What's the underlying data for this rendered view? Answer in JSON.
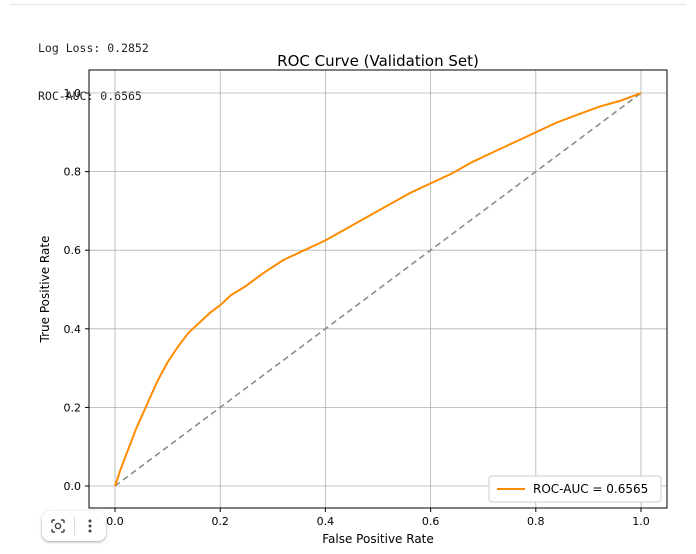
{
  "output": {
    "lines": [
      "Log Loss: 0.2852",
      "ROC-AUC: 0.6565"
    ]
  },
  "chart_data": {
    "type": "line",
    "title": "ROC Curve (Validation Set)",
    "xlabel": "False Positive Rate",
    "ylabel": "True Positive Rate",
    "xlim": [
      0,
      1
    ],
    "ylim": [
      0,
      1
    ],
    "xticks": [
      "0.0",
      "0.2",
      "0.4",
      "0.6",
      "0.8",
      "1.0"
    ],
    "yticks": [
      "0.0",
      "0.2",
      "0.4",
      "0.6",
      "0.8",
      "1.0"
    ],
    "grid": true,
    "legend_position": "lower right",
    "series": [
      {
        "name": "ROC-AUC = 0.6565",
        "color": "#ff8c00",
        "points": [
          [
            0,
            0
          ],
          [
            0.01,
            0.04
          ],
          [
            0.02,
            0.075
          ],
          [
            0.03,
            0.11
          ],
          [
            0.04,
            0.145
          ],
          [
            0.05,
            0.175
          ],
          [
            0.06,
            0.205
          ],
          [
            0.07,
            0.235
          ],
          [
            0.08,
            0.265
          ],
          [
            0.09,
            0.29
          ],
          [
            0.1,
            0.315
          ],
          [
            0.12,
            0.355
          ],
          [
            0.14,
            0.39
          ],
          [
            0.16,
            0.415
          ],
          [
            0.18,
            0.44
          ],
          [
            0.2,
            0.46
          ],
          [
            0.22,
            0.485
          ],
          [
            0.25,
            0.51
          ],
          [
            0.28,
            0.54
          ],
          [
            0.32,
            0.575
          ],
          [
            0.36,
            0.6
          ],
          [
            0.4,
            0.625
          ],
          [
            0.44,
            0.655
          ],
          [
            0.48,
            0.685
          ],
          [
            0.52,
            0.715
          ],
          [
            0.56,
            0.745
          ],
          [
            0.6,
            0.77
          ],
          [
            0.64,
            0.795
          ],
          [
            0.68,
            0.825
          ],
          [
            0.72,
            0.85
          ],
          [
            0.76,
            0.875
          ],
          [
            0.8,
            0.9
          ],
          [
            0.84,
            0.925
          ],
          [
            0.88,
            0.945
          ],
          [
            0.92,
            0.965
          ],
          [
            0.96,
            0.98
          ],
          [
            1.0,
            1.0
          ]
        ]
      },
      {
        "name": "",
        "color": "#8c8c8c",
        "dashed": true,
        "points": [
          [
            0,
            0
          ],
          [
            1,
            1
          ]
        ]
      }
    ]
  },
  "toolbar": {
    "icons": [
      "screenshot-icon",
      "more-vert-icon"
    ]
  }
}
